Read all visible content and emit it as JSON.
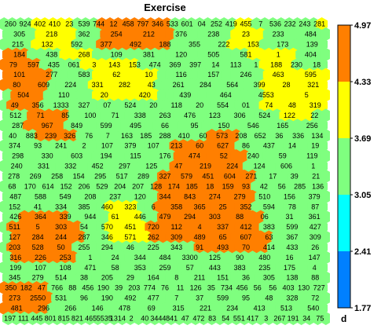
{
  "chart_data": {
    "type": "heatmap",
    "subtype": "hexagonal self-organizing map",
    "title": "Exercise",
    "colorbar": {
      "label": "d",
      "ticks": [
        "4.97",
        "4.33",
        "3.69",
        "3.05",
        "2.41",
        "1.77"
      ],
      "range": [
        1.77,
        4.97
      ],
      "bands": [
        {
          "min": 4.33,
          "max": 4.97,
          "color": "#ff7f00"
        },
        {
          "min": 3.69,
          "max": 4.33,
          "color": "#ffff00"
        },
        {
          "min": 3.05,
          "max": 3.69,
          "color": "#7fff7f"
        },
        {
          "min": 2.41,
          "max": 3.05,
          "color": "#00ffff"
        },
        {
          "min": 1.77,
          "max": 2.41,
          "color": "#0080ff"
        }
      ]
    },
    "grid": {
      "rows": 30,
      "cols": 40
    },
    "rows": [
      "LLLLMMMMMLLLHHHHHHHHHLLLLLLLLMMLLLLLLLLM",
      "LLLLMMMMMLLLHHHHHHHHHLLLLLLLMMMMLLLLLLLL",
      "LLLLMMMMMLLLHHHHHHHHHLLLLLLLMMMMLLLLLLLL",
      "HHHLLLLMMMMLLLLLLLLLLLLLLLLLLLMMMMMMLLLL",
      "HHHHHLLLLLMMMMMMMLLLLLLLLLLLLLLLMMMMLLLL",
      "HHHHHHLLLLLMMMMMMMMLLLLLLLLLLLLLMMMMMMMM",
      "HHHHHHLLLLLMMMMMMMMLLLLLLLLLLLLLMMMMMMMM",
      "LHHHHLLLLLLMMMMMMMMLLLLLLLLLLLLLMMMMMMMM",
      "LHHHHLLLLLLLLLLLLLLLLLLLLLLLLLLLMMMMMMMM",
      "LLLHHHHHLLLLLLLLLLLLLLLLLLLLLLLLLLMMMMLL",
      "LLLHHHHHLLLLLLLLLLLLLLLLLLLLLLLLLLLLLLLL",
      "LLLLHHHHHLLLLLLLLLLLLLLLLHHHHLLLLLLLLLLL",
      "LLLLLLLLLLLLLLLLLLLLLHHHHHHHHLLLLLLLLLLL",
      "LLLLLLLLLLLLLLLLLLLLLHHHHHHHHHLLLLLLLLLL",
      "LLLLLLLLLLLLLLLLLLLLLHHHHHHHHHLLLLLLLLLL",
      "LLLLLLLLLLLLLLLLLLLHHHHHHHHHHHHLLLLLLLLL",
      "LLLLLLLLLLLLLLLLLLLHHHHHHHHHHHHLLLLLLLLL",
      "LLLLLLLLLLLLLLLLLLLHHHHHHHHHHHHLLLLLLLLL",
      "LLLLLLLLLLLLLMMMMLLHHHHHHHHHHHHLLLLLLLLL",
      "LLHHHHHHLLLLLMMMMLLHHHHHHHHHHHHHLLLLLLLL",
      "LHHHHHHHHHLLLMMMMMHHHHHHHHHHHHHHLLLLLLLL",
      "LHHHHHHHHHLLLMMMMMHHHHHHHHHHHHHHHLLLLLLL",
      "LHHHHHHHHLLLLLLLLLLLLLLLHHHHHHHHHLLLLLLL",
      "LHHHHHHHHLLLLLLLLLLLLLLLLLLLLLLLLLLLLLLL",
      "LLLLLLLLLLLLLLLLLLLLLLLLLLLLLLLLLLLLLLLL",
      "LLLLLLLLLLLLLLLLLLLLLLLLLLLLLLLLLLLLLLLL",
      "HHHHHHLLLLLLLLLLLLLLLLLLLLLLLLLLLLLLLLLL",
      "HHHHHHLLLLLLLLLLLLLLLLLLLLLLLLLLLLLLLLLL",
      "HHHHHHLLLLLLLLLLLLLLLLLLLLLLLLLLLLLLLLLL",
      "LLLLLLLLLLLLLLLLLLLLLLLLLLLLLLLLLLLLLLLL"
    ],
    "cell_labels": [
      [
        "260",
        "924",
        "402",
        "410",
        "23",
        "539",
        "744",
        "12",
        "458",
        "797",
        "346",
        "533",
        "601",
        "04",
        "252",
        "419",
        "455",
        "7",
        "536",
        "232",
        "243",
        "281"
      ],
      [
        "305",
        "218",
        "362",
        "254",
        "212",
        "376",
        "238",
        "23",
        "233",
        "484"
      ],
      [
        "215",
        "132",
        "592",
        "377",
        "492",
        "188",
        "355",
        "222",
        "153",
        "173",
        "139"
      ],
      [
        "184",
        "438",
        "268",
        "109",
        "381",
        "120",
        "505",
        "581",
        "1",
        "404"
      ],
      [
        "79",
        "597",
        "435",
        "061",
        "3",
        "143",
        "153",
        "474",
        "369",
        "397",
        "14",
        "113",
        "1",
        "188",
        "230",
        "18"
      ],
      [
        "101",
        "277",
        "583",
        "62",
        "10",
        "116",
        "157",
        "246",
        "463",
        "595"
      ],
      [
        "80",
        "609",
        "224",
        "331",
        "282",
        "43",
        "261",
        "284",
        "564",
        "399",
        "28",
        "321"
      ],
      [
        "504",
        "110",
        "20",
        "420",
        "439",
        "464",
        "4553",
        "5"
      ],
      [
        "49",
        "356",
        "1333",
        "327",
        "07",
        "524",
        "20",
        "118",
        "20",
        "554",
        "01",
        "74",
        "48",
        "319"
      ],
      [
        "512",
        "71",
        "85",
        "100",
        "71",
        "338",
        "263",
        "476",
        "123",
        "306",
        "524",
        "122",
        "22"
      ],
      [
        "287",
        "967",
        "849",
        "599",
        "495",
        "66",
        "95",
        "150",
        "546",
        "165",
        "256"
      ],
      [
        "40",
        "883",
        "239",
        "326",
        "76",
        "7",
        "163",
        "185",
        "288",
        "410",
        "60",
        "573",
        "208",
        "652",
        "36",
        "336",
        "134"
      ],
      [
        "374",
        "93",
        "241",
        "2",
        "107",
        "379",
        "107",
        "213",
        "60",
        "627",
        "86",
        "437",
        "14",
        "19"
      ],
      [
        "298",
        "330",
        "603",
        "194",
        "115",
        "176",
        "474",
        "52",
        "240",
        "59",
        "119"
      ],
      [
        "240",
        "331",
        "332",
        "452",
        "297",
        "125",
        "47",
        "219",
        "224",
        "124",
        "606",
        "1"
      ],
      [
        "278",
        "269",
        "258",
        "154",
        "295",
        "517",
        "289",
        "327",
        "579",
        "451",
        "604",
        "271",
        "17",
        "39",
        "21"
      ],
      [
        "68",
        "170",
        "614",
        "152",
        "206",
        "529",
        "204",
        "207",
        "128",
        "174",
        "185",
        "18",
        "159",
        "93",
        "42",
        "56",
        "285",
        "136"
      ],
      [
        "487",
        "588",
        "549",
        "208",
        "237",
        "120",
        "344",
        "843",
        "274",
        "279",
        "510",
        "156",
        "379"
      ],
      [
        "152",
        "41",
        "334",
        "385",
        "460",
        "323",
        "6",
        "358",
        "365",
        "25",
        "352",
        "594",
        "78",
        "87"
      ],
      [
        "426",
        "364",
        "339",
        "944",
        "61",
        "446",
        "479",
        "294",
        "303",
        "88",
        "06",
        "31",
        "361"
      ],
      [
        "511",
        "5",
        "303",
        "54",
        "570",
        "451",
        "720",
        "112",
        "4",
        "337",
        "412",
        "383",
        "599",
        "427"
      ],
      [
        "127",
        "284",
        "244",
        "287",
        "346",
        "571",
        "262",
        "309",
        "489",
        "65",
        "607",
        "63",
        "367",
        "309"
      ],
      [
        "203",
        "528",
        "50",
        "255",
        "294",
        "46",
        "225",
        "343",
        "91",
        "493",
        "70",
        "414",
        "433",
        "26"
      ],
      [
        "316",
        "226",
        "253",
        "1",
        "24",
        "344",
        "484",
        "3300",
        "125",
        "90",
        "480",
        "16",
        "147"
      ],
      [
        "199",
        "107",
        "108",
        "471",
        "58",
        "353",
        "259",
        "57",
        "443",
        "383",
        "235",
        "175",
        "4"
      ],
      [
        "345",
        "279",
        "514",
        "38",
        "205",
        "29",
        "164",
        "8",
        "211",
        "151",
        "36",
        "305",
        "138",
        "88"
      ],
      [
        "350",
        "182",
        "47",
        "766",
        "88",
        "456",
        "190",
        "39",
        "203",
        "774",
        "76",
        "11",
        "126",
        "35",
        "734",
        "456",
        "56",
        "56",
        "403",
        "130",
        "727"
      ],
      [
        "273",
        "2550",
        "531",
        "96",
        "190",
        "492",
        "477",
        "7",
        "37",
        "599",
        "95",
        "48",
        "328",
        "72"
      ],
      [
        "481",
        "296",
        "266",
        "146",
        "478",
        "69",
        "315",
        "221",
        "234",
        "413",
        "513",
        "540"
      ],
      [
        "197",
        "111",
        "445",
        "801",
        "815",
        "821",
        "465",
        "5535",
        "1314",
        "2",
        "40",
        "3444",
        "841",
        "47",
        "472",
        "83",
        "54",
        "551",
        "417",
        "3",
        "267",
        "191",
        "34",
        "75"
      ]
    ]
  }
}
